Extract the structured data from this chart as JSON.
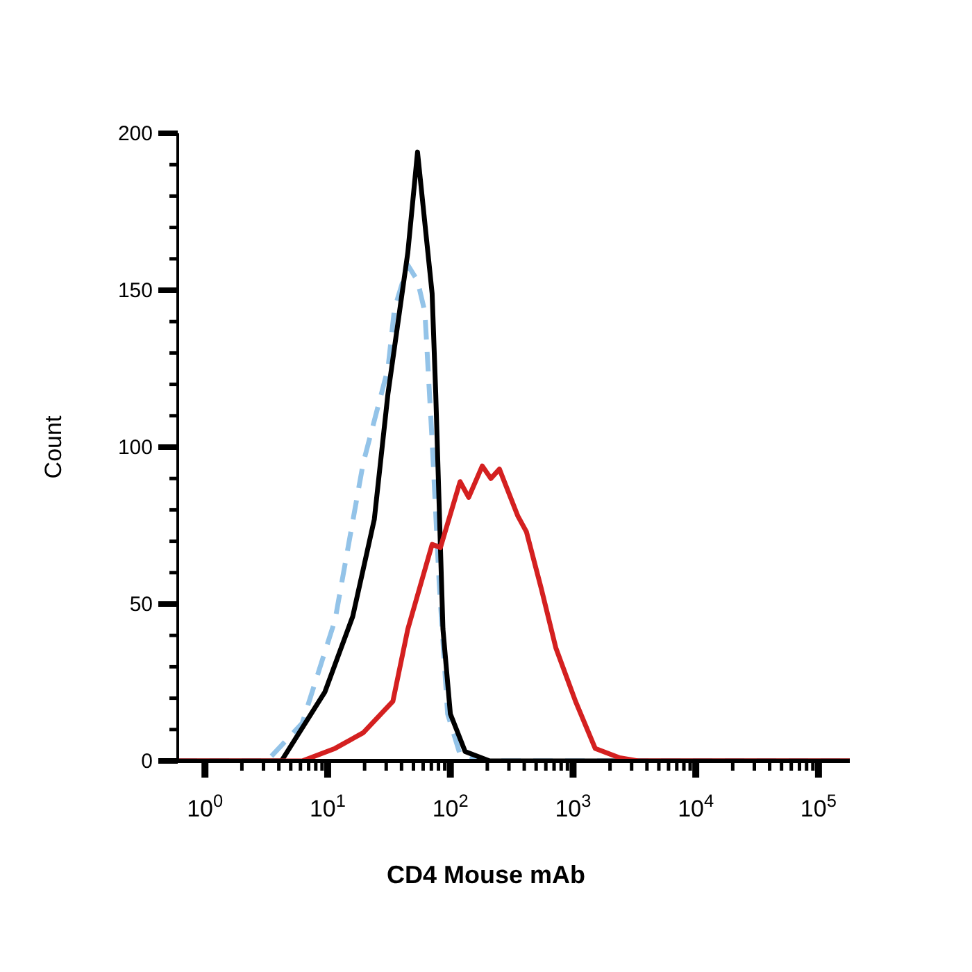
{
  "chart_data": {
    "type": "line",
    "xlabel": "CD4 Mouse mAb",
    "ylabel": "Count",
    "log": "x",
    "xlim": [
      0.6,
      180000
    ],
    "ylim": [
      0,
      200
    ],
    "xticks": [
      {
        "value": 1,
        "label": "10$^{0}$"
      },
      {
        "value": 2,
        "label": null
      },
      {
        "value": 3,
        "label": null
      },
      {
        "value": 4,
        "label": null
      },
      {
        "value": 5,
        "label": null
      },
      {
        "value": 6,
        "label": null
      },
      {
        "value": 7,
        "label": null
      },
      {
        "value": 8,
        "label": null
      },
      {
        "value": 9,
        "label": null
      },
      {
        "value": 10,
        "label": "10$^{1}$"
      },
      {
        "value": 20,
        "label": null
      },
      {
        "value": 30,
        "label": null
      },
      {
        "value": 40,
        "label": null
      },
      {
        "value": 50,
        "label": null
      },
      {
        "value": 60,
        "label": null
      },
      {
        "value": 70,
        "label": null
      },
      {
        "value": 80,
        "label": null
      },
      {
        "value": 90,
        "label": null
      },
      {
        "value": 100,
        "label": "10$^{2}$"
      },
      {
        "value": 200,
        "label": null
      },
      {
        "value": 300,
        "label": null
      },
      {
        "value": 400,
        "label": null
      },
      {
        "value": 500,
        "label": null
      },
      {
        "value": 600,
        "label": null
      },
      {
        "value": 700,
        "label": null
      },
      {
        "value": 800,
        "label": null
      },
      {
        "value": 900,
        "label": null
      },
      {
        "value": 1000,
        "label": "10$^{3}$"
      },
      {
        "value": 2000,
        "label": null
      },
      {
        "value": 3000,
        "label": null
      },
      {
        "value": 4000,
        "label": null
      },
      {
        "value": 5000,
        "label": null
      },
      {
        "value": 6000,
        "label": null
      },
      {
        "value": 7000,
        "label": null
      },
      {
        "value": 8000,
        "label": null
      },
      {
        "value": 9000,
        "label": null
      },
      {
        "value": 10000,
        "label": "10$^{4}$"
      },
      {
        "value": 20000,
        "label": null
      },
      {
        "value": 30000,
        "label": null
      },
      {
        "value": 40000,
        "label": null
      },
      {
        "value": 50000,
        "label": null
      },
      {
        "value": 60000,
        "label": null
      },
      {
        "value": 70000,
        "label": null
      },
      {
        "value": 80000,
        "label": null
      },
      {
        "value": 90000,
        "label": null
      },
      {
        "value": 100000,
        "label": "10$^{5}$"
      }
    ],
    "yticks": [
      0,
      {
        "value": 10,
        "label": null
      },
      {
        "value": 20,
        "label": null
      },
      {
        "value": 30,
        "label": null
      },
      {
        "value": 40,
        "label": null
      },
      50,
      {
        "value": 60,
        "label": null
      },
      {
        "value": 70,
        "label": null
      },
      {
        "value": 80,
        "label": null
      },
      {
        "value": 90,
        "label": null
      },
      100,
      {
        "value": 110,
        "label": null
      },
      {
        "value": 120,
        "label": null
      },
      {
        "value": 130,
        "label": null
      },
      {
        "value": 140,
        "label": null
      },
      150,
      {
        "value": 160,
        "label": null
      },
      {
        "value": 170,
        "label": null
      },
      {
        "value": 180,
        "label": null
      },
      {
        "value": 190,
        "label": null
      },
      200
    ],
    "marker": "none",
    "series": [
      {
        "color": "#93c3e8",
        "line_style": "dashed",
        "x": [
          0.6,
          3.2,
          6.2,
          11.5,
          19.5,
          31,
          35,
          45,
          54,
          62,
          71,
          81,
          95,
          120,
          200,
          180000
        ],
        "values": [
          0,
          0,
          12,
          45,
          95,
          125,
          144,
          158,
          153,
          143,
          102,
          57,
          15,
          2,
          0,
          0
        ]
      },
      {
        "color": "#000000",
        "line_style": "solid",
        "x": [
          0.6,
          4.2,
          9.5,
          16,
          24,
          31,
          36,
          45,
          54,
          71,
          76,
          87,
          100,
          132,
          209,
          180000
        ],
        "values": [
          0,
          0,
          22,
          46,
          77,
          117,
          135,
          162,
          194,
          149,
          117,
          42,
          15,
          3,
          0,
          0
        ]
      },
      {
        "color": "#d42020",
        "line_style": "solid",
        "x": [
          0.6,
          6.2,
          11.5,
          19.5,
          34,
          45,
          71,
          83,
          120,
          141,
          182,
          214,
          251,
          355,
          417,
          550,
          724,
          1047,
          1514,
          2399,
          3388,
          180000
        ],
        "values": [
          0,
          0,
          4,
          9,
          19,
          42,
          69,
          68,
          89,
          84,
          94,
          90,
          93,
          78,
          73,
          55,
          36,
          19,
          4,
          1,
          0,
          0
        ]
      }
    ]
  }
}
